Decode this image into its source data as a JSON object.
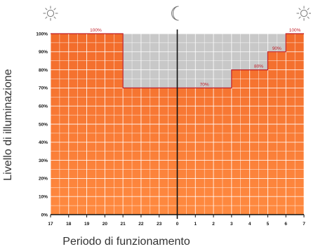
{
  "chart_data": {
    "type": "area",
    "xlabel": "Periodo di funzionamento",
    "ylabel": "Livello di illuminazione",
    "x_ticks": [
      "17",
      "18",
      "19",
      "20",
      "21",
      "22",
      "23",
      "0",
      "1",
      "2",
      "3",
      "4",
      "5",
      "6",
      "7"
    ],
    "y_ticks": [
      "0%",
      "10%",
      "20%",
      "30%",
      "40%",
      "50%",
      "60%",
      "70%",
      "80%",
      "90%",
      "100%"
    ],
    "ylim": [
      0,
      100
    ],
    "series": [
      {
        "values": [
          100,
          100,
          100,
          100,
          70,
          70,
          70,
          70,
          70,
          70,
          80,
          80,
          90,
          100
        ]
      }
    ],
    "data_labels": [
      {
        "text": "100%",
        "x_index": 2,
        "value": 100
      },
      {
        "text": "70%",
        "x_index": 8,
        "value": 70
      },
      {
        "text": "80%",
        "x_index": 11,
        "value": 80
      },
      {
        "text": "90%",
        "x_index": 12,
        "value": 90
      },
      {
        "text": "100%",
        "x_index": 13,
        "value": 100
      }
    ],
    "icons": [
      {
        "name": "sun-icon",
        "x_index": 0
      },
      {
        "name": "moon-icon",
        "x_index": 7
      },
      {
        "name": "sun-icon",
        "x_index": 14
      }
    ],
    "grid": true,
    "colors": {
      "fill": "#f26b2a",
      "fill_light": "#ff8a40",
      "background": "#c8c8c8",
      "step_line": "#c0202a",
      "grid": "#ffffff"
    }
  }
}
